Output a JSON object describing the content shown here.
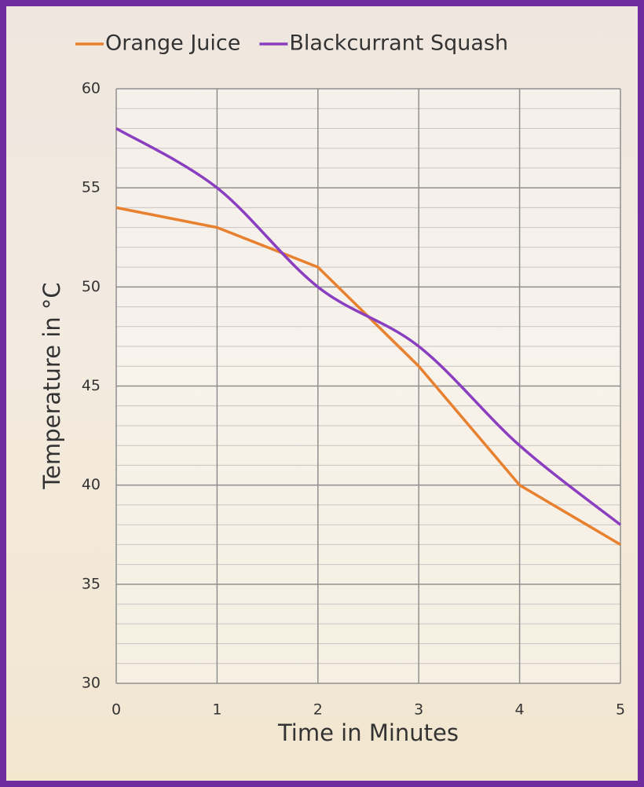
{
  "chart_data": {
    "type": "line",
    "x_label": "Time in Minutes",
    "y_label": "Temperature in °C",
    "x": [
      0,
      1,
      2,
      3,
      4,
      5
    ],
    "series": [
      {
        "name": "Orange Juice",
        "color": "#e8812f",
        "smooth": false,
        "values": [
          54,
          53,
          51,
          46,
          40,
          37
        ]
      },
      {
        "name": "Blackcurrant Squash",
        "color": "#8a3fc0",
        "smooth": true,
        "values": [
          58,
          55,
          50,
          47,
          42,
          38
        ]
      }
    ],
    "xlim": [
      0,
      5
    ],
    "xticks": [
      0,
      1,
      2,
      3,
      4,
      5
    ],
    "ylim": [
      30,
      60
    ],
    "yticks": [
      30,
      35,
      40,
      45,
      50,
      55,
      60
    ],
    "y_minor_step": 1,
    "grid": true,
    "legend": "top"
  }
}
